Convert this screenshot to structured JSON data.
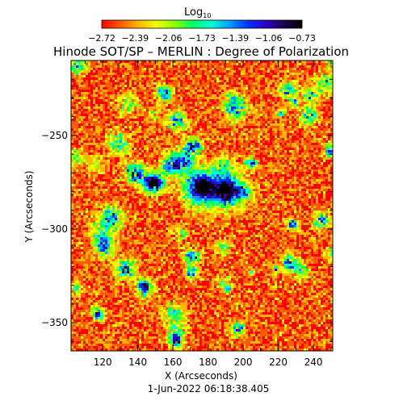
{
  "colorbar": {
    "title_base": "Log",
    "title_sub": "10",
    "ticks": [
      "-2.72",
      "-2.39",
      "-2.06",
      "-1.73",
      "-1.39",
      "-1.06",
      "-0.73"
    ],
    "range": [
      -2.72,
      -0.73
    ],
    "colors": [
      "#ff0000",
      "#ff5a00",
      "#ffb400",
      "#f0ff00",
      "#8cff00",
      "#00ff64",
      "#00ffd2",
      "#00a0ff",
      "#0032ff",
      "#3200c8",
      "#1e0050",
      "#000000"
    ]
  },
  "title": "Hinode SOT/SP – MERLIN : Degree of Polarization",
  "map": {
    "xlabel": "X (Arcseconds)",
    "ylabel": "Y (Arcseconds)",
    "xlim": [
      102,
      251
    ],
    "ylim": [
      -365,
      -210
    ],
    "xticks": [
      "120",
      "140",
      "160",
      "180",
      "200",
      "220",
      "240"
    ],
    "xtick_values": [
      120,
      140,
      160,
      180,
      200,
      220,
      240
    ],
    "yticks": [
      "−250",
      "−300",
      "−350"
    ],
    "ytick_values": [
      -250,
      -300,
      -350
    ],
    "spots": [
      {
        "x": 175,
        "y": -277
      },
      {
        "x": 190,
        "y": -279
      }
    ]
  },
  "timestamp": "1-Jun-2022 06:18:38.405"
}
